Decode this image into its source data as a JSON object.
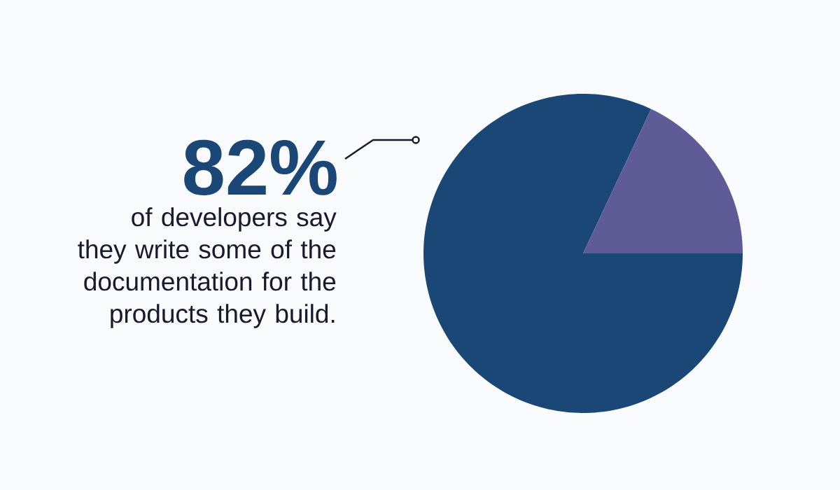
{
  "chart_data": {
    "type": "pie",
    "subtitle": "of developers say they write some of the documentation for the products they build.",
    "categories": [
      null,
      null
    ],
    "values": [
      82,
      18
    ],
    "colors": [
      "#1a4776",
      "#5e5b96"
    ],
    "value_labels": [
      "82%",
      null
    ]
  }
}
